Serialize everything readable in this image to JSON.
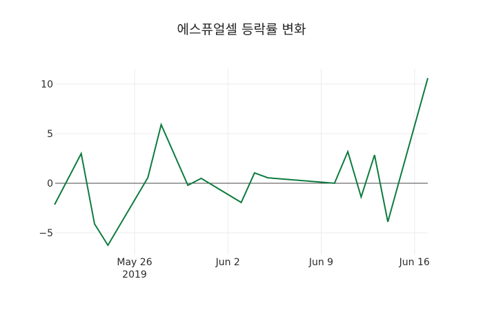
{
  "chart_data": {
    "type": "line",
    "title": "에스퓨얼셀 등락률 변화",
    "xlabel": "",
    "ylabel": "",
    "x": [
      "2019-05-20",
      "2019-05-22",
      "2019-05-23",
      "2019-05-24",
      "2019-05-27",
      "2019-05-28",
      "2019-05-30",
      "2019-05-31",
      "2019-06-03",
      "2019-06-04",
      "2019-06-05",
      "2019-06-10",
      "2019-06-11",
      "2019-06-12",
      "2019-06-13",
      "2019-06-14",
      "2019-06-17"
    ],
    "series": [
      {
        "name": "등락률",
        "color": "#0b7a3e",
        "values": [
          -2.15,
          2.99,
          -4.1,
          -6.25,
          0.56,
          5.9,
          -0.21,
          0.49,
          -1.94,
          1.04,
          0.55,
          0.0,
          3.19,
          -1.39,
          2.85,
          -3.89,
          10.6
        ]
      }
    ],
    "ylim": [
      -7.2,
      11.5
    ],
    "yticks": [
      -5,
      0,
      5,
      10
    ],
    "ytick_labels": [
      "−5",
      "0",
      "5",
      "10"
    ],
    "xticks": [
      "2019-05-26",
      "2019-06-02",
      "2019-06-09",
      "2019-06-16"
    ],
    "xtick_labels": [
      "May 26",
      "Jun 2",
      "Jun 9",
      "Jun 16"
    ],
    "xtick_sublabel": "2019",
    "grid": true,
    "legend": "none"
  }
}
